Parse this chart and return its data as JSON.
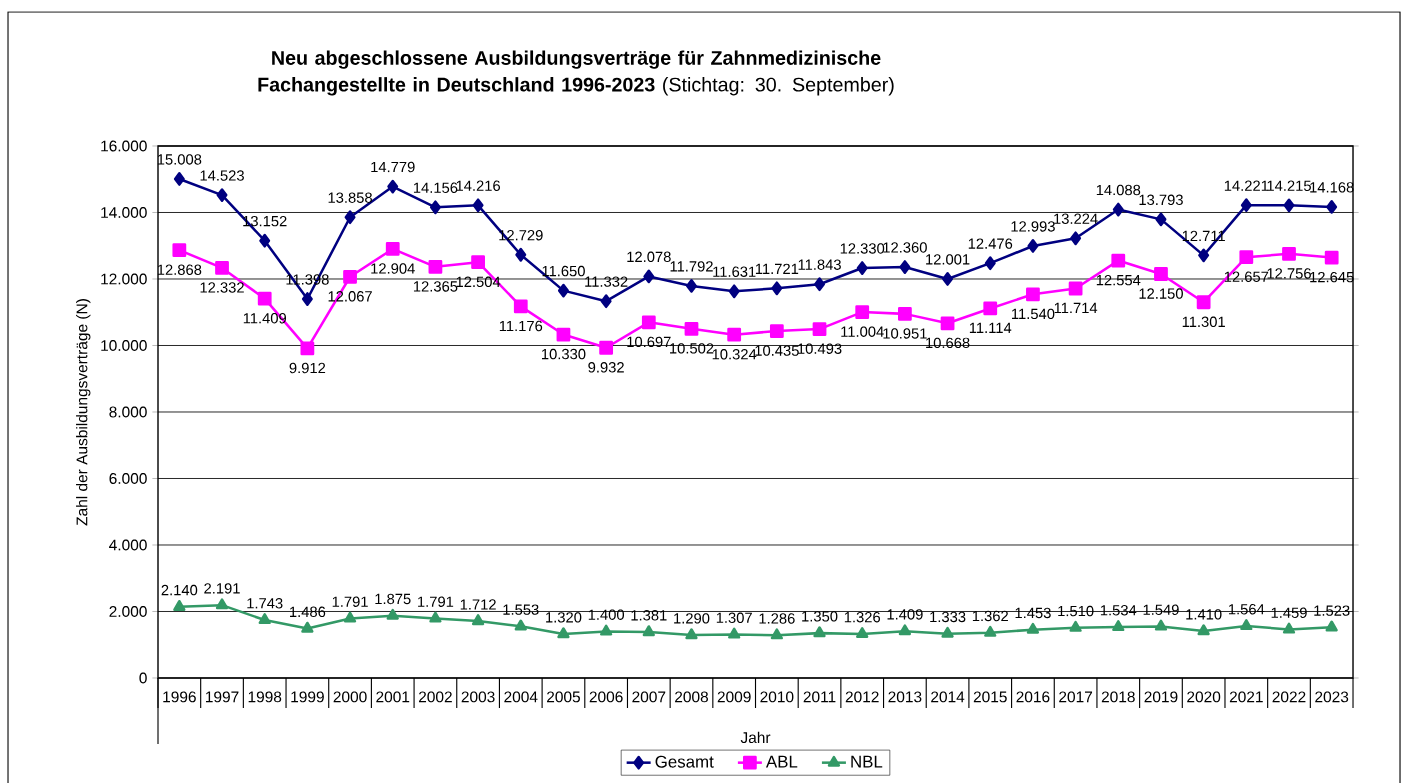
{
  "chart_data": {
    "type": "line",
    "title": "**Neu abgeschlossene Ausbildungsverträge für Zahnmedizinische Fachangestellte in Deutschland 1996-2023** (Stichtag: 30. September)",
    "xlabel": "Jahr",
    "ylabel": "Zahl der Ausbildungsverträge  (N)",
    "categories": [
      "1996",
      "1997",
      "1998",
      "1999",
      "2000",
      "2001",
      "2002",
      "2003",
      "2004",
      "2005",
      "2006",
      "2007",
      "2008",
      "2009",
      "2010",
      "2011",
      "2012",
      "2013",
      "2014",
      "2015",
      "2016",
      "2017",
      "2018",
      "2019",
      "2020",
      "2021",
      "2022",
      "2023"
    ],
    "series": [
      {
        "name": "Gesamt",
        "color": "#000080",
        "marker": "diamond",
        "values": [
          15008,
          14523,
          13152,
          11398,
          13858,
          14779,
          14156,
          14216,
          12729,
          11650,
          11332,
          12078,
          11792,
          11631,
          11721,
          11843,
          12330,
          12360,
          12001,
          12476,
          12993,
          13224,
          14088,
          13793,
          12711,
          14221,
          14215,
          14168
        ],
        "value_labels": [
          "15.008",
          "14.523",
          "13.152",
          "11.398",
          "13.858",
          "14.779",
          "14.156",
          "14.216",
          "12.729",
          "11.650",
          "11.332",
          "12.078",
          "11.792",
          "11.631",
          "11.721",
          "11.843",
          "12.330",
          "12.360",
          "12.001",
          "12.476",
          "12.993",
          "13.224",
          "14.088",
          "13.793",
          "12.711",
          "14.221",
          "14.215",
          "14.168"
        ]
      },
      {
        "name": "ABL",
        "color": "#ff00ff",
        "marker": "square",
        "values": [
          12868,
          12332,
          11409,
          9912,
          12067,
          12904,
          12365,
          12504,
          11176,
          10330,
          9932,
          10697,
          10502,
          10324,
          10435,
          10493,
          11004,
          10951,
          10668,
          11114,
          11540,
          11714,
          12554,
          12150,
          11301,
          12657,
          12756,
          12645
        ],
        "value_labels": [
          "12.868",
          "12.332",
          "11.409",
          "9.912",
          "12.067",
          "12.904",
          "12.365",
          "12.504",
          "11.176",
          "10.330",
          "9.932",
          "10.697",
          "10.502",
          "10.324",
          "10.435",
          "10.493",
          "11.004",
          "10.951",
          "10.668",
          "11.114",
          "11.540",
          "11.714",
          "12.554",
          "12.150",
          "11.301",
          "12.657",
          "12.756",
          "12.645"
        ]
      },
      {
        "name": "NBL",
        "color": "#339966",
        "marker": "triangle",
        "values": [
          2140,
          2191,
          1743,
          1486,
          1791,
          1875,
          1791,
          1712,
          1553,
          1320,
          1400,
          1381,
          1290,
          1307,
          1286,
          1350,
          1326,
          1409,
          1333,
          1362,
          1453,
          1510,
          1534,
          1549,
          1410,
          1564,
          1459,
          1523
        ],
        "value_labels": [
          "2.140",
          "2.191",
          "1.743",
          "1.486",
          "1.791",
          "1.875",
          "1.791",
          "1.712",
          "1.553",
          "1.320",
          "1.400",
          "1.381",
          "1.290",
          "1.307",
          "1.286",
          "1.350",
          "1.326",
          "1.409",
          "1.333",
          "1.362",
          "1.453",
          "1.510",
          "1.534",
          "1.549",
          "1.410",
          "1.564",
          "1.459",
          "1.523"
        ]
      }
    ],
    "ylim": [
      0,
      16000
    ],
    "yticks": [
      0,
      {
        "value": 2000,
        "label": "2.000"
      },
      {
        "value": 4000,
        "label": "4.000"
      },
      {
        "value": 6000,
        "label": "6.000"
      },
      {
        "value": 8000,
        "label": "8.000"
      },
      {
        "value": 10000,
        "label": "10.000"
      },
      {
        "value": 12000,
        "label": "12.000"
      },
      {
        "value": 14000,
        "label": "14.000"
      },
      {
        "value": 16000,
        "label": "16.000"
      }
    ],
    "grid": "y",
    "legend": "bottom",
    "line_style": "solid"
  }
}
